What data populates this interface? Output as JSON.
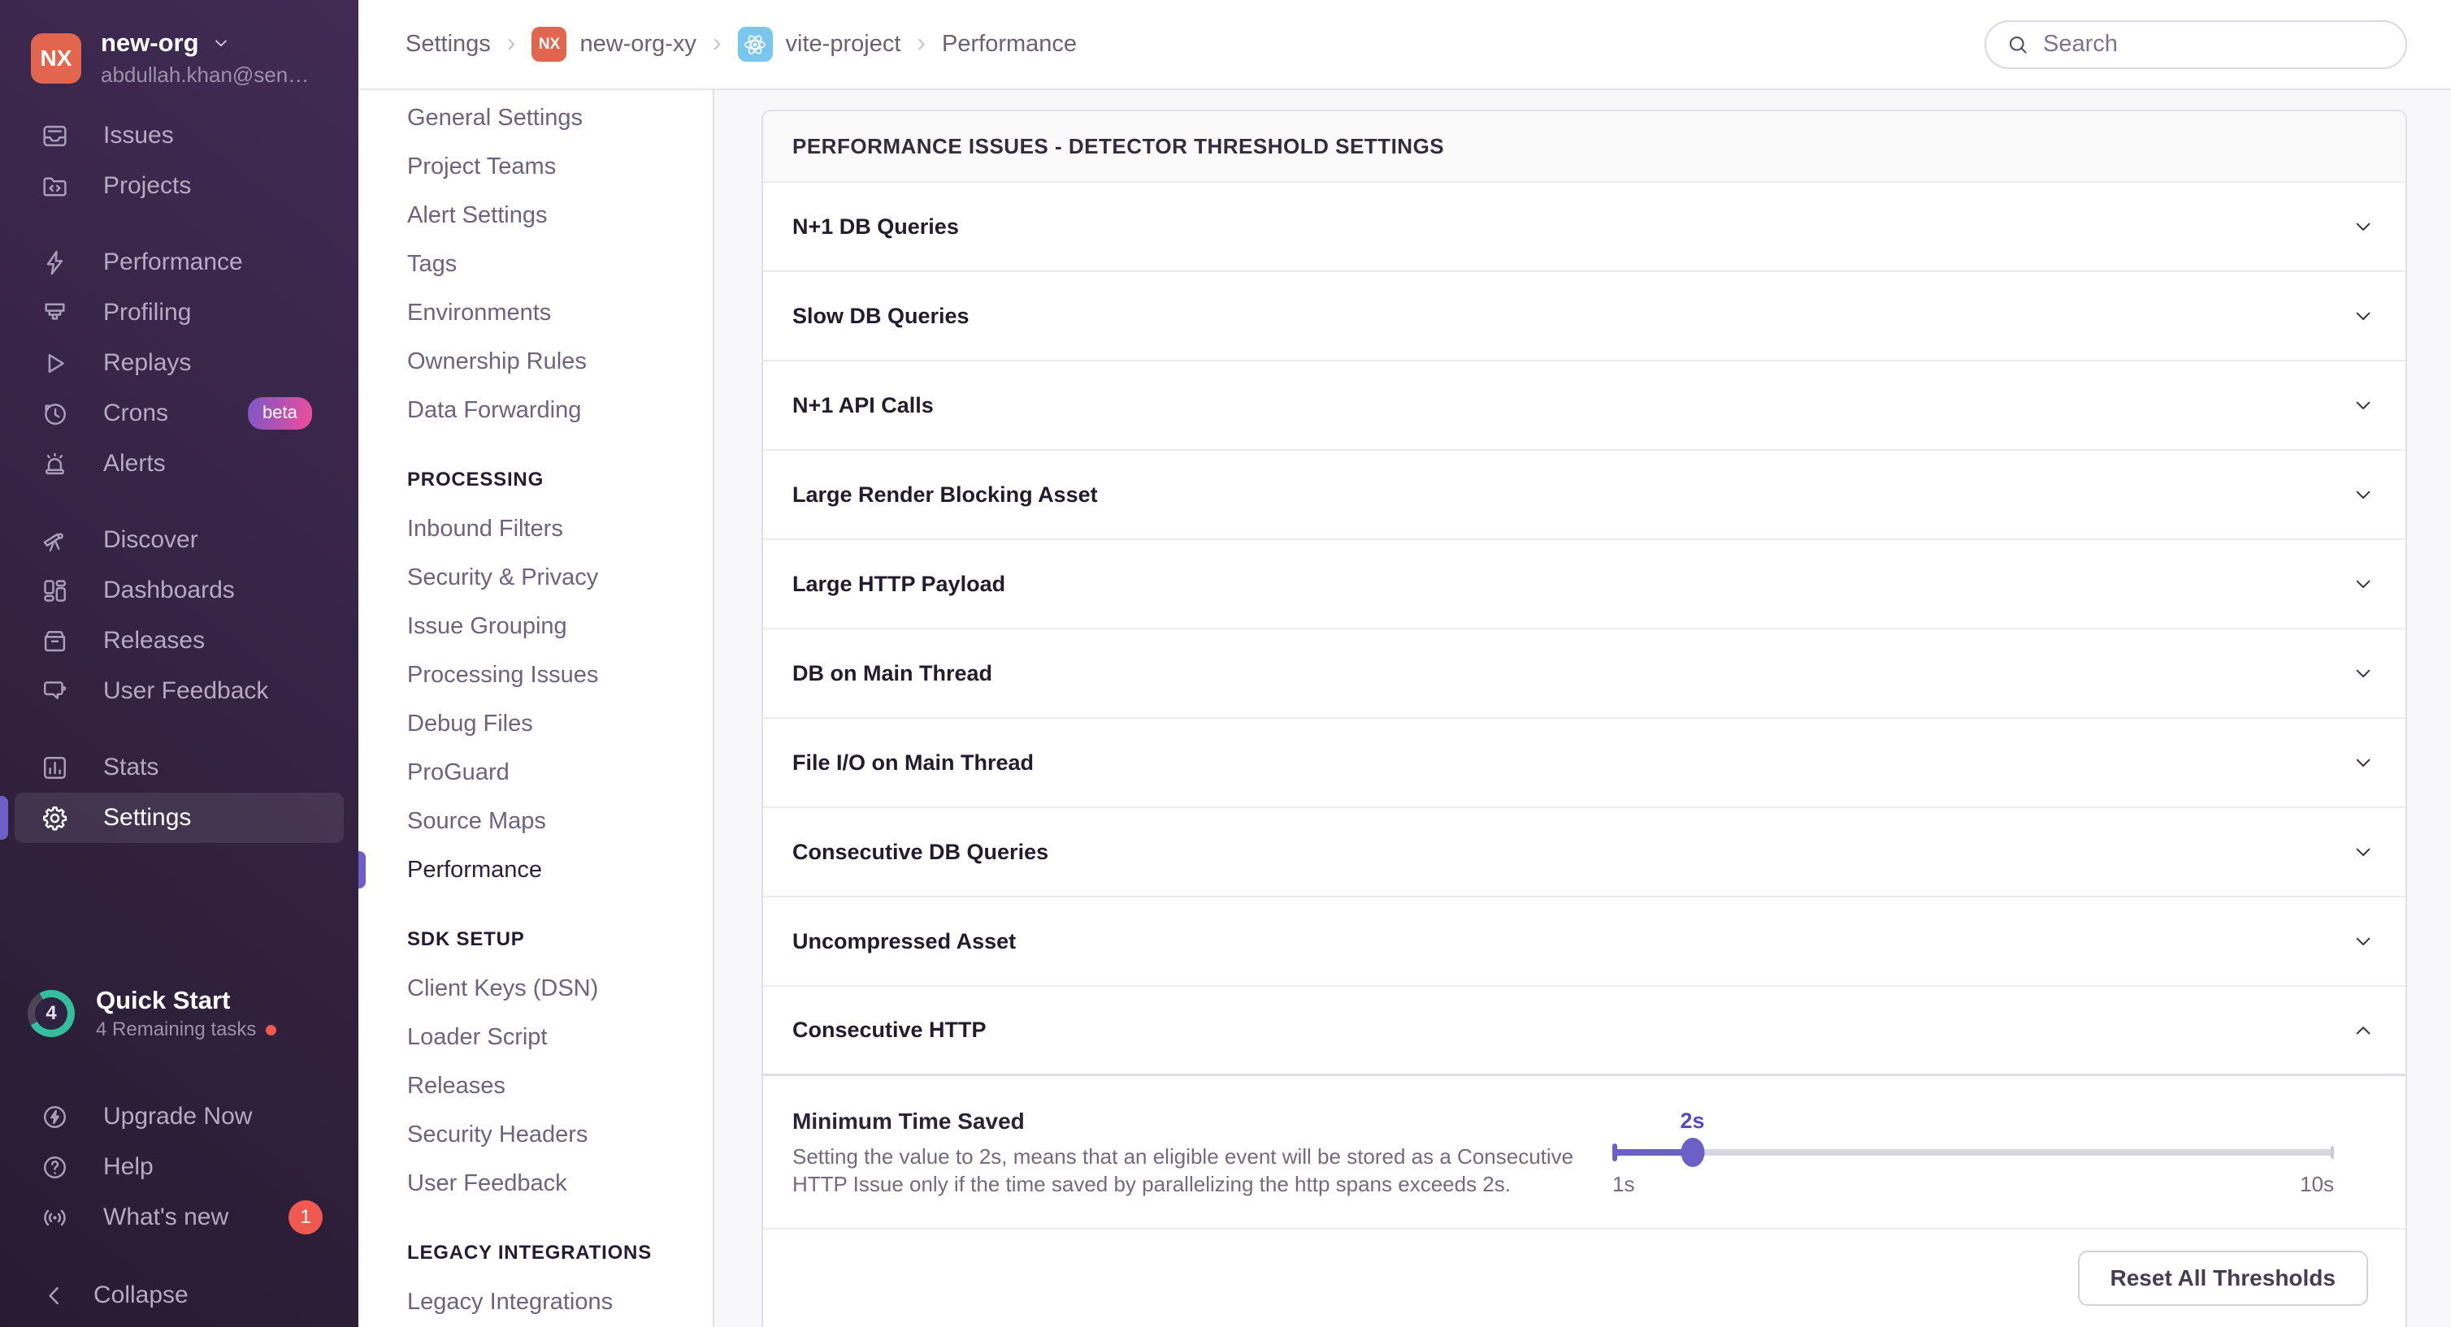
{
  "colors": {
    "accent": "#6C5FC7",
    "org_avatar": "#E1664D",
    "beta_from": "#7C56C9",
    "beta_to": "#EE4E9B",
    "green": "#33BF9E",
    "red": "#EF5950",
    "react_blue": "#79C6EF"
  },
  "sidebar": {
    "org": {
      "avatar_initials": "NX",
      "name": "new-org",
      "email": "abdullah.khan@sen…",
      "chevron_icon": "chevron-down-icon"
    },
    "sections": [
      {
        "items": [
          {
            "label": "Issues",
            "icon": "issues-icon"
          },
          {
            "label": "Projects",
            "icon": "projects-icon"
          }
        ]
      },
      {
        "items": [
          {
            "label": "Performance",
            "icon": "performance-icon"
          },
          {
            "label": "Profiling",
            "icon": "profiling-icon"
          },
          {
            "label": "Replays",
            "icon": "replays-icon"
          },
          {
            "label": "Crons",
            "icon": "crons-icon",
            "badge": "beta"
          },
          {
            "label": "Alerts",
            "icon": "alerts-icon"
          }
        ]
      },
      {
        "items": [
          {
            "label": "Discover",
            "icon": "discover-icon"
          },
          {
            "label": "Dashboards",
            "icon": "dashboards-icon"
          },
          {
            "label": "Releases",
            "icon": "releases-icon"
          },
          {
            "label": "User Feedback",
            "icon": "user-feedback-icon"
          }
        ]
      },
      {
        "items": [
          {
            "label": "Stats",
            "icon": "stats-icon"
          },
          {
            "label": "Settings",
            "icon": "settings-icon",
            "active": true
          }
        ]
      }
    ],
    "quick_start": {
      "count": "4",
      "title": "Quick Start",
      "subtitle": "4 Remaining tasks",
      "progress_pct": 75
    },
    "footer_items": [
      {
        "label": "Upgrade Now",
        "icon": "upgrade-icon"
      },
      {
        "label": "Help",
        "icon": "help-icon"
      },
      {
        "label": "What's new",
        "icon": "broadcast-icon",
        "count": "1"
      }
    ],
    "collapse": {
      "label": "Collapse",
      "icon": "chevron-left-icon"
    }
  },
  "topbar": {
    "breadcrumbs": [
      {
        "label": "Settings"
      },
      {
        "label": "new-org-xy",
        "badge": "NX"
      },
      {
        "label": "vite-project",
        "icon": "react-icon"
      },
      {
        "label": "Performance",
        "current": true
      }
    ],
    "search": {
      "placeholder": "Search",
      "value": "",
      "icon": "search-icon"
    }
  },
  "settings_nav": {
    "groups": [
      {
        "header": null,
        "items": [
          {
            "label": "General Settings"
          },
          {
            "label": "Project Teams"
          },
          {
            "label": "Alert Settings"
          },
          {
            "label": "Tags"
          },
          {
            "label": "Environments"
          },
          {
            "label": "Ownership Rules"
          },
          {
            "label": "Data Forwarding"
          }
        ]
      },
      {
        "header": "PROCESSING",
        "items": [
          {
            "label": "Inbound Filters"
          },
          {
            "label": "Security & Privacy"
          },
          {
            "label": "Issue Grouping"
          },
          {
            "label": "Processing Issues"
          },
          {
            "label": "Debug Files"
          },
          {
            "label": "ProGuard"
          },
          {
            "label": "Source Maps"
          },
          {
            "label": "Performance",
            "active": true
          }
        ]
      },
      {
        "header": "SDK SETUP",
        "items": [
          {
            "label": "Client Keys (DSN)"
          },
          {
            "label": "Loader Script"
          },
          {
            "label": "Releases"
          },
          {
            "label": "Security Headers"
          },
          {
            "label": "User Feedback"
          }
        ]
      },
      {
        "header": "LEGACY INTEGRATIONS",
        "items": [
          {
            "label": "Legacy Integrations"
          }
        ]
      }
    ]
  },
  "main": {
    "panel_title": "PERFORMANCE ISSUES - DETECTOR THRESHOLD SETTINGS",
    "detectors": [
      {
        "label": "N+1 DB Queries",
        "expanded": false
      },
      {
        "label": "Slow DB Queries",
        "expanded": false
      },
      {
        "label": "N+1 API Calls",
        "expanded": false
      },
      {
        "label": "Large Render Blocking Asset",
        "expanded": false
      },
      {
        "label": "Large HTTP Payload",
        "expanded": false
      },
      {
        "label": "DB on Main Thread",
        "expanded": false
      },
      {
        "label": "File I/O on Main Thread",
        "expanded": false
      },
      {
        "label": "Consecutive DB Queries",
        "expanded": false
      },
      {
        "label": "Uncompressed Asset",
        "expanded": false
      },
      {
        "label": "Consecutive HTTP",
        "expanded": true
      }
    ],
    "expanded_detail": {
      "setting_label": "Minimum Time Saved",
      "setting_description": "Setting the value to 2s, means that an eligible event will be stored as a Consecutive HTTP Issue only if the time saved by parallelizing the http spans exceeds 2s.",
      "slider": {
        "value_label": "2s",
        "min_label": "1s",
        "max_label": "10s",
        "percent": 11.1
      }
    },
    "footer": {
      "reset_button": "Reset All Thresholds"
    }
  }
}
